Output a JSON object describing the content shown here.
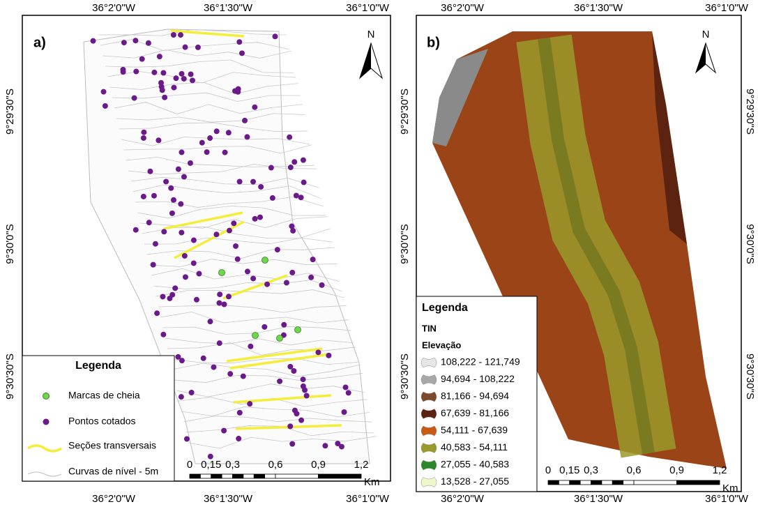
{
  "panel_a": {
    "label": "a)",
    "north": "N",
    "top_labels": [
      "36°2'0\"W",
      "36°1'30\"W",
      "36°1'0\"W"
    ],
    "bottom_labels": [
      "36°2'0\"W",
      "36°1'30\"W",
      "36°1'0\"W"
    ],
    "left_labels": [
      "9°29'30\"S",
      "9°30'0\"S",
      "9°30'30\"S"
    ],
    "legend": {
      "title": "Legenda",
      "items": [
        "Marcas de cheia",
        "Pontos cotados",
        "Seções transversais",
        "Curvas de nível - 5m"
      ]
    },
    "scale": {
      "ticks": [
        "0",
        "0,15",
        "0,3",
        "0,6",
        "0,9",
        "1,2"
      ],
      "unit": "Km"
    }
  },
  "panel_b": {
    "label": "b)",
    "north": "N",
    "top_labels": [
      "36°2'0\"W",
      "36°1'30\"W",
      "36°1'0\"W"
    ],
    "bottom_labels": [
      "36°2'0\"W",
      "36°1'30\"W",
      "36°1'0\"W"
    ],
    "left_labels": [
      "9°29'30\"S",
      "9°30'0\"S",
      "9°30'30\"S"
    ],
    "right_labels": [
      "9°29'30\"S",
      "9°30'0\"S",
      "9°30'30\"S"
    ],
    "legend": {
      "title": "Legenda",
      "subtitle": "TIN",
      "field": "Elevação",
      "classes": [
        {
          "label": "108,222 - 121,749",
          "color": "#e6e6e6"
        },
        {
          "label": "94,694 - 108,222",
          "color": "#a8a8a8"
        },
        {
          "label": "81,166 - 94,694",
          "color": "#7a4a2a"
        },
        {
          "label": "67,639 - 81,166",
          "color": "#5c2410"
        },
        {
          "label": "54,111 - 67,639",
          "color": "#c85a14"
        },
        {
          "label": "40,583 - 54,111",
          "color": "#9a9a2a"
        },
        {
          "label": "27,055 - 40,583",
          "color": "#2a8a2a"
        },
        {
          "label": "13,528 - 27,055",
          "color": "#eef7c8"
        }
      ]
    },
    "scale": {
      "ticks": [
        "0",
        "0,15",
        "0,3",
        "0,6",
        "0,9",
        "1,2"
      ],
      "unit": "Km"
    }
  }
}
